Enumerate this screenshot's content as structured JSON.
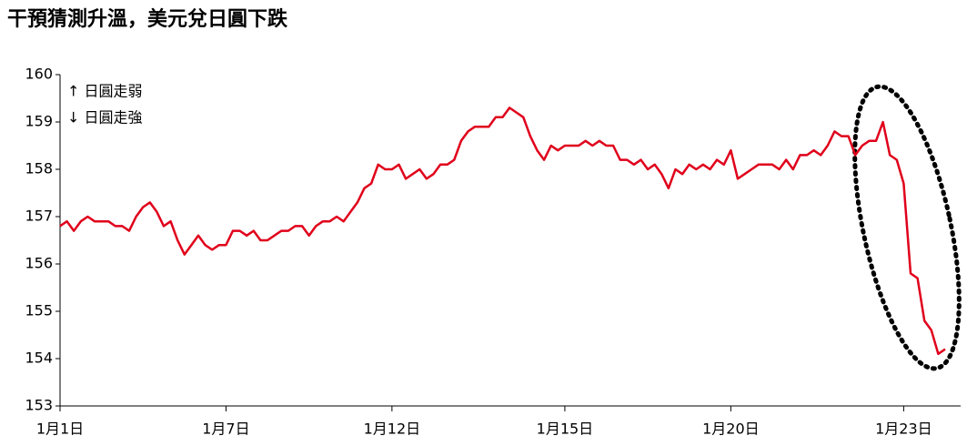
{
  "chart_data": {
    "type": "line",
    "title": "干預猜測升溫，美元兌日圓下跌",
    "annotations": [
      "↑ 日圓走弱",
      "↓ 日圓走強"
    ],
    "categories": [
      "1月1日",
      null,
      null,
      null,
      null,
      null,
      null,
      null,
      null,
      null,
      null,
      null,
      null,
      null,
      null,
      null,
      null,
      null,
      null,
      null,
      null,
      null,
      null,
      null,
      "1月7日",
      null,
      null,
      null,
      null,
      null,
      null,
      null,
      null,
      null,
      null,
      null,
      null,
      null,
      null,
      null,
      null,
      null,
      null,
      null,
      null,
      null,
      null,
      null,
      "1月12日",
      null,
      null,
      null,
      null,
      null,
      null,
      null,
      null,
      null,
      null,
      null,
      null,
      null,
      null,
      null,
      null,
      null,
      null,
      null,
      null,
      null,
      null,
      null,
      null,
      "1月15日",
      null,
      null,
      null,
      null,
      null,
      null,
      null,
      null,
      null,
      null,
      null,
      null,
      null,
      null,
      null,
      null,
      null,
      null,
      null,
      null,
      null,
      null,
      null,
      "1月20日",
      null,
      null,
      null,
      null,
      null,
      null,
      null,
      null,
      null,
      null,
      null,
      null,
      null,
      null,
      null,
      null,
      null,
      null,
      null,
      null,
      null,
      null,
      null,
      null,
      "1月23日",
      null,
      null,
      null,
      null,
      null,
      null
    ],
    "series": [
      {
        "color": "#e0001b",
        "values": [
          156.8,
          156.9,
          156.7,
          156.9,
          157.0,
          156.9,
          156.9,
          156.9,
          156.8,
          156.8,
          156.7,
          157.0,
          157.2,
          157.3,
          157.1,
          156.8,
          156.9,
          156.5,
          156.2,
          156.4,
          156.6,
          156.4,
          156.3,
          156.4,
          156.4,
          156.7,
          156.7,
          156.6,
          156.7,
          156.5,
          156.5,
          156.6,
          156.7,
          156.7,
          156.8,
          156.8,
          156.6,
          156.8,
          156.9,
          156.9,
          157.0,
          156.9,
          157.1,
          157.3,
          157.6,
          157.7,
          158.1,
          158.0,
          158.0,
          158.1,
          157.8,
          157.9,
          158.0,
          157.8,
          157.9,
          158.1,
          158.1,
          158.2,
          158.6,
          158.8,
          158.9,
          158.9,
          158.9,
          159.1,
          159.1,
          159.3,
          159.2,
          159.1,
          158.7,
          158.4,
          158.2,
          158.5,
          158.4,
          158.5,
          158.5,
          158.5,
          158.6,
          158.5,
          158.6,
          158.5,
          158.5,
          158.2,
          158.2,
          158.1,
          158.2,
          158.0,
          158.1,
          157.9,
          157.6,
          158.0,
          157.9,
          158.1,
          158.0,
          158.1,
          158.0,
          158.2,
          158.1,
          158.4,
          157.8,
          157.9,
          158.0,
          158.1,
          158.1,
          158.1,
          158.0,
          158.2,
          158.0,
          158.3,
          158.3,
          158.4,
          158.3,
          158.5,
          158.8,
          158.7,
          158.7,
          158.3,
          158.5,
          158.6,
          158.6,
          159.0,
          158.3,
          158.2,
          157.7,
          155.8,
          155.7,
          154.8,
          154.6,
          154.1,
          154.2
        ]
      }
    ],
    "ylim": [
      153,
      160
    ],
    "yticks": [
      153,
      154,
      155,
      156,
      157,
      158,
      159,
      160
    ]
  }
}
